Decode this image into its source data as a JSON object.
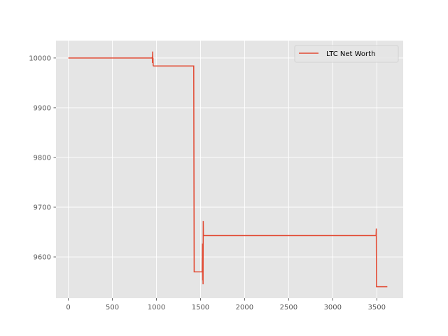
{
  "chart_data": {
    "type": "line",
    "title": "",
    "xlabel": "",
    "ylabel": "",
    "xlim": [
      -140,
      3800
    ],
    "ylim": [
      9517,
      10035
    ],
    "xticks": [
      0,
      500,
      1000,
      1500,
      2000,
      2500,
      3000,
      3500
    ],
    "yticks": [
      9600,
      9700,
      9800,
      9900,
      10000
    ],
    "grid": true,
    "legend_position": "top-right",
    "colors": {
      "background": "#E5E5E5",
      "grid": "#FFFFFF",
      "series": "#E24A33"
    },
    "series": [
      {
        "name": "LTC Net Worth",
        "x": [
          0,
          950,
          953,
          955,
          957,
          959,
          961,
          963,
          966,
          1000,
          1400,
          1410,
          1420,
          1423,
          1428,
          1430,
          1433,
          1500,
          1520,
          1523,
          1525,
          1527,
          1529,
          1531,
          1533,
          1536,
          1540,
          1545,
          3480,
          3490,
          3492,
          3495,
          3497,
          3500,
          3510,
          3620
        ],
        "y": [
          10000,
          10000,
          10002,
          9990,
          10013,
          9998,
          10000,
          9985,
          9984,
          9984,
          9984,
          9984,
          9984,
          9984,
          9570,
          9570,
          9570,
          9570,
          9570,
          9627,
          9553,
          9570,
          9545,
          9672,
          9643,
          9643,
          9643,
          9643,
          9643,
          9643,
          9643,
          9657,
          9540,
          9540,
          9540,
          9540
        ]
      }
    ]
  }
}
